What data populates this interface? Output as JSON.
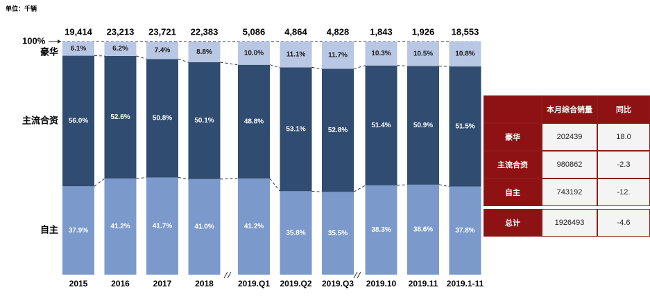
{
  "unit_note": "单位：千辆",
  "chart_data": {
    "type": "stacked_bar_100",
    "categories": [
      "2015",
      "2016",
      "2017",
      "2018",
      "2019.Q1",
      "2019.Q2",
      "2019.Q3",
      "2019.10",
      "2019.11",
      "2019.1-11"
    ],
    "totals": [
      19414,
      23213,
      23721,
      22383,
      5086,
      4864,
      4828,
      1843,
      1926,
      18553
    ],
    "total_labels": [
      "19,414",
      "23,213",
      "23,721",
      "22,383",
      "5,086",
      "4,864",
      "4,828",
      "1,843",
      "1,926",
      "18,553"
    ],
    "series": [
      {
        "name": "自主",
        "color": "#7b9acb",
        "values": [
          37.9,
          41.2,
          41.7,
          41.0,
          41.2,
          35.8,
          35.5,
          38.3,
          38.6,
          37.8
        ],
        "value_labels": [
          "37.9%",
          "41.2%",
          "41.7%",
          "41.0%",
          "41.2%",
          "35.8%",
          "35.5%",
          "38.3%",
          "38.6%",
          "37.8%"
        ]
      },
      {
        "name": "主流合资",
        "color": "#304c70",
        "values": [
          56.0,
          52.6,
          50.8,
          50.1,
          48.8,
          53.1,
          52.8,
          51.4,
          50.9,
          51.5
        ],
        "value_labels": [
          "56.0%",
          "52.6%",
          "50.8%",
          "50.1%",
          "48.8%",
          "53.1%",
          "52.8%",
          "51.4%",
          "50.9%",
          "51.5%"
        ]
      },
      {
        "name": "豪华",
        "color": "#b8c7e3",
        "values": [
          6.1,
          6.2,
          7.4,
          8.8,
          10.0,
          11.1,
          11.7,
          10.3,
          10.5,
          10.8
        ],
        "value_labels": [
          "6.1%",
          "6.2%",
          "7.4%",
          "8.8%",
          "10.0%",
          "11.1%",
          "11.7%",
          "10.3%",
          "10.5%",
          "10.8%"
        ]
      }
    ],
    "ylim": [
      0,
      100
    ],
    "yticks": [
      {
        "value": 100,
        "label": "100%"
      }
    ],
    "grid": false
  },
  "table": {
    "header": [
      "本月综合销量",
      "同比"
    ],
    "rows": [
      [
        "豪华",
        "202439",
        "18.0"
      ],
      [
        "主流合资",
        "980862",
        "-2.3"
      ],
      [
        "自主",
        "743192",
        "-12."
      ],
      [
        "总计",
        "1926493",
        "-4.6"
      ]
    ]
  }
}
